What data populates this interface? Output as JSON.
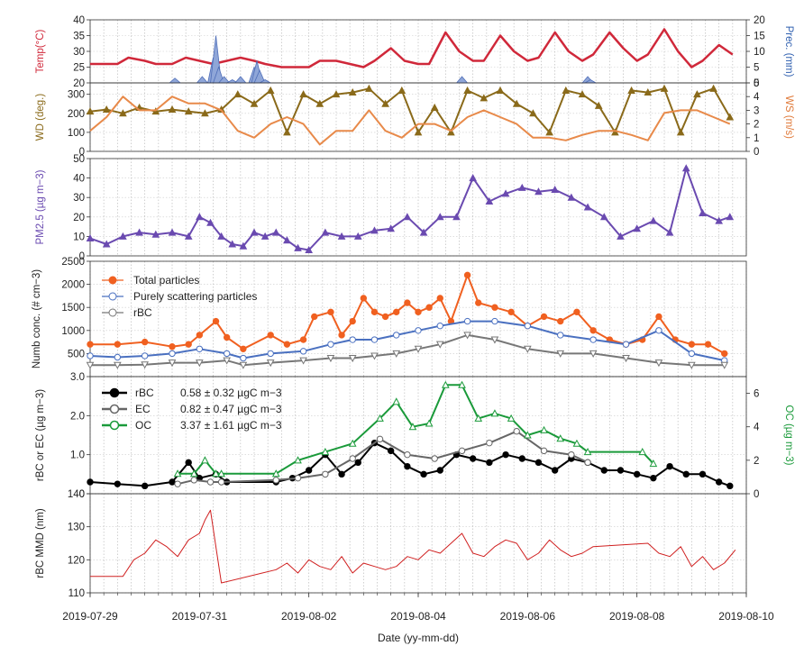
{
  "chart_data": [
    {
      "panel": "temperature-precipitation",
      "type": "line",
      "ylabel": "Temp(°C)",
      "ylabel_color": "#d0283a",
      "ylim": [
        20,
        40
      ],
      "yticks": [
        "20",
        "25",
        "30",
        "35",
        "40"
      ],
      "y2label": "Prec. (mm)",
      "y2label_color": "#3060b0",
      "y2lim": [
        0,
        20
      ],
      "y2ticks": [
        "0",
        "5",
        "10",
        "15",
        "20"
      ],
      "series": [
        {
          "name": "Temp",
          "color": "#d0283a",
          "x": [
            0,
            0.25,
            0.5,
            0.7,
            1,
            1.2,
            1.5,
            1.75,
            2,
            2.25,
            2.5,
            2.75,
            3,
            3.2,
            3.5,
            3.75,
            4,
            4.2,
            4.5,
            4.75,
            5,
            5.2,
            5.5,
            5.75,
            6,
            6.2,
            6.5,
            6.75,
            7,
            7.2,
            7.5,
            7.75,
            8,
            8.2,
            8.5,
            8.75,
            9,
            9.2,
            9.5,
            9.75,
            10,
            10.2,
            10.5,
            10.75,
            11,
            11.2,
            11.5,
            11.75
          ],
          "values": [
            26,
            26,
            26,
            28,
            27,
            26,
            26,
            28,
            27,
            26,
            27,
            28,
            27,
            26,
            25,
            25,
            25,
            27,
            27,
            26,
            25,
            27,
            31,
            27,
            26,
            26,
            36,
            30,
            27,
            27,
            35,
            30,
            27,
            28,
            36,
            30,
            27,
            29,
            36,
            31,
            27,
            29,
            37,
            30,
            25,
            27,
            32,
            29
          ]
        },
        {
          "name": "Prec.",
          "axis": "right",
          "color": "#4f6eb8",
          "x": [
            1.55,
            2.05,
            2.25,
            2.3,
            2.35,
            2.45,
            2.6,
            2.75,
            3,
            3.05,
            3.1,
            3.2,
            6.8,
            9.1,
            9.15
          ],
          "values": [
            1.5,
            2,
            8,
            15,
            5,
            2,
            1,
            2,
            5,
            7,
            4,
            1,
            2,
            2,
            1
          ]
        }
      ]
    },
    {
      "panel": "wind",
      "type": "line",
      "ylabel": "WD (deg.)",
      "ylabel_color": "#8a6a1a",
      "ylim": [
        0,
        360
      ],
      "yticks": [
        "0",
        "100",
        "200",
        "300"
      ],
      "y2label": "WS (m/s)",
      "y2label_color": "#e07a3a",
      "y2lim": [
        0,
        5
      ],
      "y2ticks": [
        "0",
        "1",
        "2",
        "3",
        "4",
        "5"
      ],
      "series": [
        {
          "name": "WD",
          "marker": "triangle",
          "color": "#8a6a1a",
          "x": [
            0,
            0.3,
            0.6,
            0.9,
            1.2,
            1.5,
            1.8,
            2.1,
            2.4,
            2.7,
            3.0,
            3.3,
            3.6,
            3.9,
            4.2,
            4.5,
            4.8,
            5.1,
            5.4,
            5.7,
            6.0,
            6.3,
            6.6,
            6.9,
            7.2,
            7.5,
            7.8,
            8.1,
            8.4,
            8.7,
            9.0,
            9.3,
            9.6,
            9.9,
            10.2,
            10.5,
            10.8,
            11.1,
            11.4,
            11.7
          ],
          "values": [
            210,
            220,
            200,
            230,
            210,
            220,
            210,
            200,
            220,
            300,
            250,
            320,
            100,
            300,
            250,
            300,
            310,
            330,
            250,
            320,
            100,
            230,
            100,
            320,
            280,
            320,
            250,
            200,
            100,
            320,
            300,
            240,
            100,
            320,
            310,
            330,
            100,
            300,
            330,
            180
          ]
        },
        {
          "name": "WS",
          "axis": "right",
          "color": "#e88a4a",
          "x": [
            0,
            0.3,
            0.6,
            0.9,
            1.2,
            1.5,
            1.8,
            2.1,
            2.4,
            2.7,
            3.0,
            3.3,
            3.6,
            3.9,
            4.2,
            4.5,
            4.8,
            5.1,
            5.4,
            5.7,
            6.0,
            6.3,
            6.6,
            6.9,
            7.2,
            7.5,
            7.8,
            8.1,
            8.4,
            8.7,
            9.0,
            9.3,
            9.6,
            9.9,
            10.2,
            10.5,
            10.8,
            11.1,
            11.4,
            11.7
          ],
          "values": [
            1.5,
            2.5,
            4,
            3,
            3,
            4,
            3.5,
            3.5,
            3,
            1.5,
            1,
            2,
            2.5,
            2,
            0.5,
            1.5,
            1.5,
            3,
            1.5,
            1,
            2,
            2,
            1.5,
            2.5,
            3,
            2.5,
            2,
            1,
            1,
            0.8,
            1.2,
            1.5,
            1.5,
            1.2,
            0.8,
            2.8,
            3,
            3,
            2.5,
            2
          ]
        }
      ]
    },
    {
      "panel": "pm25",
      "type": "line",
      "ylabel": "PM2.5 (µg m−3)",
      "ylabel_color": "#6a4ab0",
      "ylim": [
        0,
        50
      ],
      "yticks": [
        "0",
        "10",
        "20",
        "30",
        "40",
        "50"
      ],
      "series": [
        {
          "name": "PM2.5",
          "marker": "triangle",
          "color": "#6a4ab0",
          "x": [
            0,
            0.3,
            0.6,
            0.9,
            1.2,
            1.5,
            1.8,
            2.0,
            2.2,
            2.4,
            2.6,
            2.8,
            3.0,
            3.2,
            3.4,
            3.6,
            3.8,
            4.0,
            4.3,
            4.6,
            4.9,
            5.2,
            5.5,
            5.8,
            6.1,
            6.4,
            6.7,
            7.0,
            7.3,
            7.6,
            7.9,
            8.2,
            8.5,
            8.8,
            9.1,
            9.4,
            9.7,
            10.0,
            10.3,
            10.6,
            10.9,
            11.2,
            11.5,
            11.7
          ],
          "values": [
            9,
            6,
            10,
            12,
            11,
            12,
            10,
            20,
            17,
            10,
            6,
            5,
            12,
            10,
            12,
            8,
            4,
            3,
            12,
            10,
            10,
            13,
            14,
            20,
            12,
            20,
            20,
            40,
            28,
            32,
            35,
            33,
            34,
            30,
            25,
            20,
            10,
            14,
            18,
            12,
            45,
            22,
            18,
            20
          ]
        }
      ]
    },
    {
      "panel": "number-concentration",
      "type": "line",
      "ylabel": "Numb conc. (# cm−3)",
      "ylim": [
        0,
        2500
      ],
      "yticks": [
        "500",
        "1000",
        "1500",
        "2000",
        "2500"
      ],
      "legend": "top-left",
      "series": [
        {
          "name": "Total particles",
          "marker": "circle",
          "color": "#f06020",
          "x": [
            0,
            0.5,
            1,
            1.5,
            1.8,
            2,
            2.3,
            2.5,
            2.8,
            3.3,
            3.6,
            3.9,
            4.1,
            4.4,
            4.6,
            4.8,
            5.0,
            5.2,
            5.4,
            5.6,
            5.8,
            6.0,
            6.2,
            6.4,
            6.6,
            6.9,
            7.1,
            7.4,
            7.7,
            8.0,
            8.3,
            8.6,
            8.9,
            9.2,
            9.5,
            9.8,
            10.1,
            10.4,
            10.7,
            11.0,
            11.3,
            11.6
          ],
          "values": [
            700,
            700,
            750,
            650,
            700,
            900,
            1200,
            850,
            600,
            900,
            700,
            800,
            1300,
            1400,
            900,
            1200,
            1700,
            1400,
            1300,
            1400,
            1600,
            1400,
            1500,
            1700,
            1200,
            2200,
            1600,
            1500,
            1400,
            1100,
            1300,
            1200,
            1400,
            1000,
            800,
            700,
            800,
            1300,
            800,
            700,
            700,
            500
          ]
        },
        {
          "name": "Purely scattering particles",
          "marker": "circle-cross",
          "color": "#4a70c0",
          "x": [
            0,
            0.5,
            1,
            1.5,
            2,
            2.5,
            2.8,
            3.3,
            3.9,
            4.4,
            4.8,
            5.2,
            5.6,
            6.0,
            6.4,
            6.9,
            7.4,
            8.0,
            8.6,
            9.2,
            9.8,
            10.4,
            11.0,
            11.6
          ],
          "values": [
            450,
            420,
            450,
            500,
            600,
            500,
            400,
            500,
            550,
            700,
            800,
            800,
            900,
            1000,
            1100,
            1200,
            1200,
            1100,
            900,
            800,
            700,
            1000,
            500,
            350
          ]
        },
        {
          "name": "rBC",
          "marker": "triangle-down",
          "color": "#777777",
          "x": [
            0,
            0.5,
            1,
            1.5,
            2,
            2.5,
            2.8,
            3.3,
            3.9,
            4.4,
            4.8,
            5.2,
            5.6,
            6.0,
            6.4,
            6.9,
            7.4,
            8.0,
            8.6,
            9.2,
            9.8,
            10.4,
            11.0,
            11.6
          ],
          "values": [
            250,
            250,
            260,
            300,
            300,
            350,
            250,
            300,
            350,
            400,
            400,
            450,
            500,
            600,
            700,
            900,
            800,
            600,
            500,
            500,
            400,
            300,
            250,
            250
          ]
        }
      ]
    },
    {
      "panel": "carbon",
      "type": "line",
      "ylabel": "rBC or EC (µg m−3)",
      "ylim": [
        0,
        3.0
      ],
      "yticks": [
        "0",
        "1.0",
        "2.0",
        "3.0"
      ],
      "y2label": "OC (µg m−3)",
      "y2label_color": "#1a9a3a",
      "y2lim": [
        0,
        7
      ],
      "y2ticks": [
        "0",
        "2",
        "4",
        "6"
      ],
      "legend": "top-left",
      "series": [
        {
          "name": "rBC",
          "stat": "0.58 ± 0.32 µgC m−3",
          "marker": "circle",
          "color": "#000000",
          "x": [
            0,
            0.5,
            1,
            1.5,
            1.8,
            2,
            2.3,
            2.5,
            3.4,
            3.7,
            4.0,
            4.3,
            4.6,
            4.9,
            5.2,
            5.5,
            5.8,
            6.1,
            6.4,
            6.7,
            7.0,
            7.3,
            7.6,
            7.9,
            8.2,
            8.5,
            8.8,
            9.1,
            9.4,
            9.7,
            10.0,
            10.3,
            10.6,
            10.9,
            11.2,
            11.5,
            11.7
          ],
          "values": [
            0.3,
            0.25,
            0.2,
            0.3,
            0.8,
            0.4,
            0.5,
            0.3,
            0.3,
            0.4,
            0.6,
            1.0,
            0.5,
            0.8,
            1.3,
            1.1,
            0.7,
            0.5,
            0.6,
            1.0,
            0.9,
            0.8,
            1.0,
            0.9,
            0.8,
            0.6,
            0.9,
            0.8,
            0.6,
            0.6,
            0.5,
            0.4,
            0.7,
            0.5,
            0.5,
            0.3,
            0.2
          ]
        },
        {
          "name": "EC",
          "stat": "0.82 ± 0.47 µgC m−3",
          "marker": "circle-open",
          "color": "#666666",
          "x": [
            1.6,
            1.9,
            2.2,
            2.4,
            3.4,
            3.8,
            4.3,
            4.8,
            5.3,
            5.8,
            6.3,
            6.8,
            7.3,
            7.8,
            8.3,
            8.8,
            9.1
          ],
          "values": [
            0.25,
            0.35,
            0.3,
            0.3,
            0.35,
            0.4,
            0.5,
            0.9,
            1.4,
            1.0,
            0.9,
            1.1,
            1.3,
            1.6,
            1.1,
            1.0,
            0.8
          ]
        },
        {
          "name": "OC",
          "stat": "3.37 ± 1.61 µgC m−3",
          "axis": "right",
          "marker": "triangle-open",
          "color": "#1a9a3a",
          "x": [
            1.6,
            1.9,
            2.1,
            2.3,
            2.4,
            3.4,
            3.8,
            4.3,
            4.8,
            5.3,
            5.6,
            5.9,
            6.2,
            6.5,
            6.8,
            7.1,
            7.4,
            7.7,
            8.0,
            8.3,
            8.6,
            8.9,
            9.1,
            10.1,
            10.3
          ],
          "values": [
            1.2,
            1.2,
            2.0,
            1.2,
            1.2,
            1.2,
            2.0,
            2.5,
            3.0,
            4.5,
            5.5,
            4.0,
            4.2,
            6.5,
            6.5,
            4.5,
            4.8,
            4.5,
            3.5,
            3.8,
            3.3,
            3.0,
            2.5,
            2.5,
            1.8
          ]
        }
      ]
    },
    {
      "panel": "rbc-mmd",
      "type": "line",
      "ylabel": "rBC MMD (nm)",
      "xlabel": "Date (yy-mm-dd)",
      "ylim": [
        110,
        140
      ],
      "yticks": [
        "110",
        "120",
        "130",
        "140"
      ],
      "xticks": [
        "2019-07-29",
        "2019-07-31",
        "2019-08-02",
        "2019-08-04",
        "2019-08-06",
        "2019-08-08",
        "2019-08-10"
      ],
      "series": [
        {
          "name": "rBC MMD",
          "color": "#d02020",
          "x": [
            0,
            0.2,
            0.4,
            0.6,
            0.8,
            1.0,
            1.2,
            1.4,
            1.6,
            1.8,
            2.0,
            2.1,
            2.2,
            2.3,
            2.4,
            3.4,
            3.6,
            3.8,
            4.0,
            4.2,
            4.4,
            4.6,
            4.8,
            5.0,
            5.2,
            5.4,
            5.6,
            5.8,
            6.0,
            6.2,
            6.4,
            6.6,
            6.8,
            7.0,
            7.2,
            7.4,
            7.6,
            7.8,
            8.0,
            8.2,
            8.4,
            8.6,
            8.8,
            9.0,
            9.2,
            10.2,
            10.4,
            10.6,
            10.8,
            11.0,
            11.2,
            11.4,
            11.6,
            11.8
          ],
          "values": [
            115,
            115,
            115,
            115,
            120,
            122,
            126,
            124,
            121,
            126,
            128,
            132,
            135,
            124,
            113,
            117,
            119,
            116,
            120,
            118,
            117,
            121,
            116,
            119,
            118,
            117,
            118,
            121,
            120,
            123,
            122,
            125,
            128,
            122,
            121,
            124,
            126,
            125,
            120,
            122,
            126,
            123,
            121,
            122,
            124,
            125,
            122,
            121,
            124,
            118,
            121,
            117,
            119,
            123
          ]
        }
      ]
    }
  ]
}
